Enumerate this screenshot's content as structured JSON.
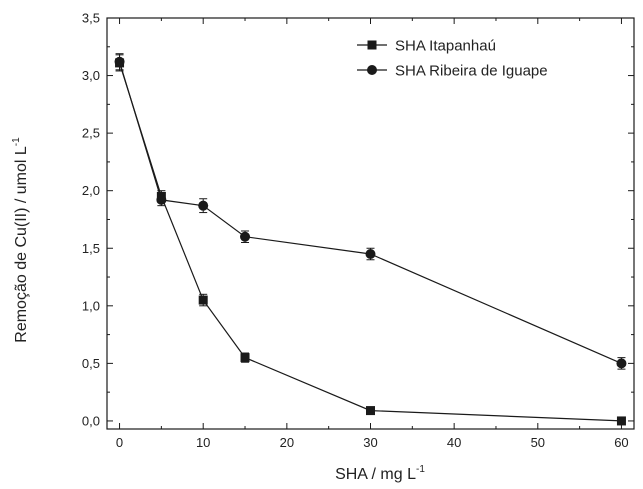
{
  "chart_data": {
    "type": "line",
    "xlabel": "SHA / mg L",
    "xlabel_sup": "-1",
    "ylabel": "Remoção de Cu(II) / umol L",
    "ylabel_sup": "-1",
    "xlim": [
      -1.5,
      61.5
    ],
    "ylim": [
      -0.07,
      3.5
    ],
    "xticks": [
      0,
      10,
      20,
      30,
      40,
      50,
      60
    ],
    "xtick_labels": [
      "0",
      "10",
      "20",
      "30",
      "40",
      "50",
      "60"
    ],
    "yticks": [
      0,
      0.5,
      1.0,
      1.5,
      2.0,
      2.5,
      3.0,
      3.5
    ],
    "ytick_labels": [
      "0,0",
      "0,5",
      "1,0",
      "1,5",
      "2,0",
      "2,5",
      "3,0",
      "3,5"
    ],
    "legend_position": "top-right",
    "grid": false,
    "series": [
      {
        "name": "SHA Itapanhaú",
        "marker": "square",
        "color": "#1a1a1a",
        "x": [
          0,
          5,
          10,
          15,
          30,
          60
        ],
        "y": [
          3.11,
          1.95,
          1.05,
          0.55,
          0.09,
          0.0
        ],
        "err": [
          0.07,
          0.05,
          0.05,
          0.04,
          0.02,
          0.01
        ]
      },
      {
        "name": "SHA Ribeira de Iguape",
        "marker": "circle",
        "color": "#1a1a1a",
        "x": [
          0,
          5,
          10,
          15,
          30,
          60
        ],
        "y": [
          3.12,
          1.92,
          1.87,
          1.6,
          1.45,
          0.5
        ],
        "err": [
          0.07,
          0.05,
          0.06,
          0.05,
          0.05,
          0.05
        ]
      }
    ]
  }
}
